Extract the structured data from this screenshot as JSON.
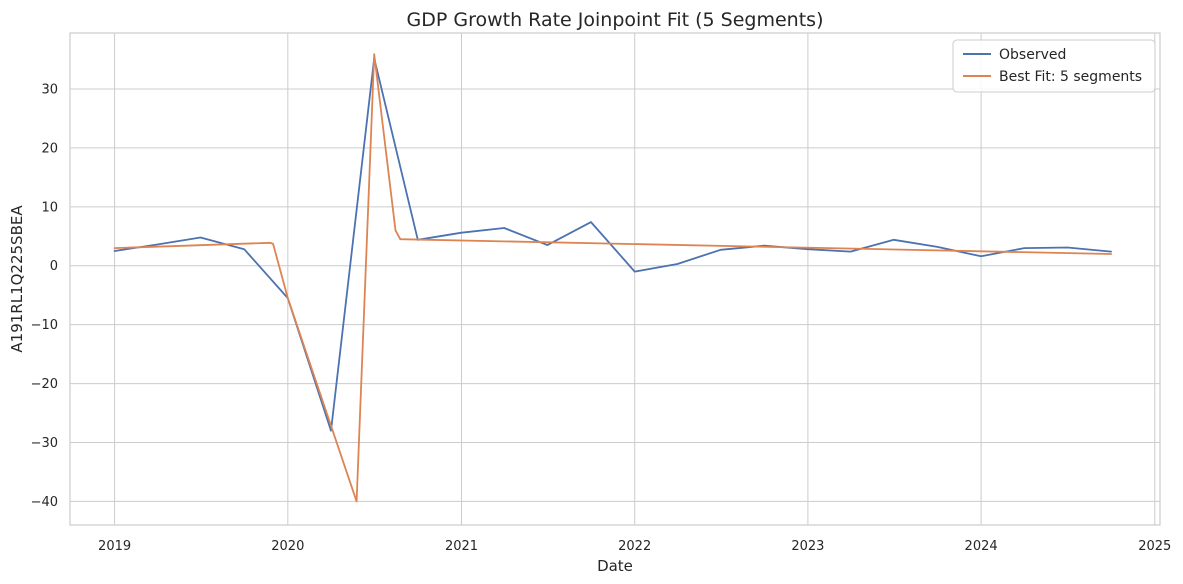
{
  "chart_data": {
    "type": "line",
    "title": "GDP Growth Rate Joinpoint Fit (5 Segments)",
    "xlabel": "Date",
    "ylabel": "A191RL1Q225SBEA",
    "xlim": [
      "2018-09-29",
      "2025-01-12"
    ],
    "ylim": [
      -44,
      39.5
    ],
    "xticks": [
      "2019",
      "2020",
      "2021",
      "2022",
      "2023",
      "2024",
      "2025"
    ],
    "yticks": [
      -40,
      -30,
      -20,
      -10,
      0,
      10,
      20,
      30
    ],
    "grid": true,
    "legend": "top-right",
    "series": [
      {
        "name": "Observed",
        "color": "#4c72b0",
        "x": [
          "2019-01-01",
          "2019-04-01",
          "2019-07-01",
          "2019-10-01",
          "2020-01-01",
          "2020-04-01",
          "2020-07-01",
          "2020-10-01",
          "2021-01-01",
          "2021-04-01",
          "2021-07-01",
          "2021-10-01",
          "2022-01-01",
          "2022-04-01",
          "2022-07-01",
          "2022-10-01",
          "2023-01-01",
          "2023-04-01",
          "2023-07-01",
          "2023-10-01",
          "2024-01-01",
          "2024-04-01",
          "2024-07-01",
          "2024-10-01"
        ],
        "y": [
          2.5,
          3.6,
          4.8,
          2.8,
          -5.5,
          -28.0,
          35.2,
          4.4,
          5.6,
          6.4,
          3.5,
          7.4,
          -1.0,
          0.3,
          2.7,
          3.4,
          2.8,
          2.4,
          4.4,
          3.2,
          1.6,
          3.0,
          3.1,
          2.4
        ]
      },
      {
        "name": "Best Fit: 5 segments",
        "color": "#dd8452",
        "x": [
          "2019-01-01",
          "2019-11-25",
          "2019-12-01",
          "2020-01-01",
          "2020-05-25",
          "2020-07-01",
          "2020-08-15",
          "2020-08-25",
          "2024-10-01"
        ],
        "y": [
          3.0,
          3.9,
          3.7,
          -5.5,
          -40.0,
          35.9,
          6.0,
          4.5,
          2.0
        ]
      }
    ]
  }
}
